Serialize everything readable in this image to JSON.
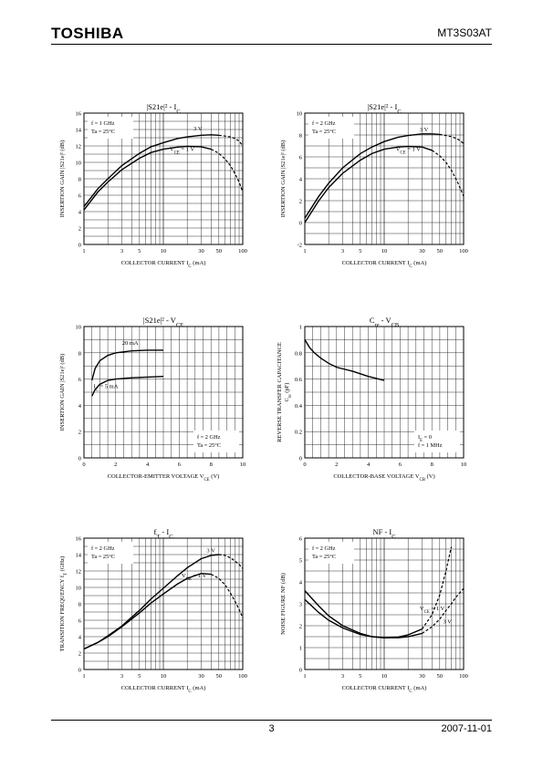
{
  "header": {
    "brand": "TOSHIBA",
    "part_number": "MT3S03AT"
  },
  "footer": {
    "page": "3",
    "date": "2007-11-01"
  },
  "chart_data": [
    {
      "type": "line",
      "title_main": "|S21e|² - I",
      "title_sub": "C",
      "xlabel_main": "COLLECTOR CURRENT  I",
      "xlabel_sub": "C",
      "xlabel_unit": "(mA)",
      "ylabel_main": "INSERTION GAIN  |S21e|²",
      "ylabel_unit": "(dB)",
      "xscale": "log",
      "xlim": [
        1,
        100
      ],
      "ylim": [
        0,
        16
      ],
      "yticks": [
        0,
        2,
        4,
        6,
        8,
        10,
        12,
        14,
        16
      ],
      "xticks": [
        1,
        3,
        5,
        10,
        30,
        50,
        100
      ],
      "conditions": [
        "f = 1 GHz",
        "Ta = 25°C"
      ],
      "series": [
        {
          "name": "3 V",
          "x": [
            1,
            1.5,
            2,
            3,
            5,
            7,
            10,
            15,
            20,
            30,
            40,
            50
          ],
          "y": [
            4.6,
            6.8,
            8.0,
            9.6,
            11.1,
            11.9,
            12.4,
            12.9,
            13.1,
            13.3,
            13.35,
            13.3
          ],
          "dashed_x": [
            50,
            60,
            70,
            80,
            90,
            100
          ],
          "dashed_y": [
            13.3,
            13.2,
            13.1,
            12.9,
            12.6,
            12.0
          ]
        },
        {
          "name": "VCE = 1 V",
          "x": [
            1,
            1.5,
            2,
            3,
            5,
            7,
            10,
            15,
            20,
            30,
            40
          ],
          "y": [
            4.2,
            6.4,
            7.6,
            9.1,
            10.5,
            11.2,
            11.6,
            11.85,
            11.95,
            11.9,
            11.6
          ],
          "dashed_x": [
            40,
            50,
            60,
            70,
            80,
            90,
            100
          ],
          "dashed_y": [
            11.6,
            11.1,
            10.4,
            9.6,
            8.6,
            7.6,
            6.4
          ]
        }
      ]
    },
    {
      "type": "line",
      "title_main": "|S21e|² - I",
      "title_sub": "C",
      "xlabel_main": "COLLECTOR CURRENT  I",
      "xlabel_sub": "C",
      "xlabel_unit": "(mA)",
      "ylabel_main": "INSERTION GAIN  |S21e|²",
      "ylabel_unit": "(dB)",
      "xscale": "log",
      "xlim": [
        1,
        100
      ],
      "ylim": [
        -2,
        10
      ],
      "yticks": [
        -2,
        0,
        2,
        4,
        6,
        8,
        10
      ],
      "xticks": [
        1,
        3,
        5,
        10,
        30,
        50,
        100
      ],
      "conditions": [
        "f = 2 GHz",
        "Ta = 25°C"
      ],
      "series": [
        {
          "name": "3 V",
          "x": [
            1,
            1.5,
            2,
            3,
            5,
            7,
            10,
            15,
            20,
            30,
            40,
            50
          ],
          "y": [
            0.4,
            2.4,
            3.6,
            5.0,
            6.3,
            6.9,
            7.4,
            7.8,
            7.95,
            8.1,
            8.1,
            8.05
          ],
          "dashed_x": [
            50,
            60,
            70,
            80,
            90,
            100
          ],
          "dashed_y": [
            8.05,
            7.95,
            7.85,
            7.7,
            7.5,
            7.2
          ]
        },
        {
          "name": "VCE = 1 V",
          "x": [
            1,
            1.5,
            2,
            3,
            5,
            7,
            10,
            15,
            20,
            30,
            40
          ],
          "y": [
            0.0,
            2.0,
            3.2,
            4.5,
            5.7,
            6.3,
            6.7,
            6.9,
            6.95,
            6.9,
            6.6
          ],
          "dashed_x": [
            40,
            50,
            60,
            70,
            80,
            90,
            100
          ],
          "dashed_y": [
            6.6,
            6.1,
            5.5,
            4.8,
            4.0,
            3.2,
            2.4
          ]
        }
      ]
    },
    {
      "type": "line",
      "title_main": "|S21e|² - V",
      "title_sub": "CE",
      "xlabel_main": "COLLECTOR-EMITTER VOLTAGE  V",
      "xlabel_sub": "CE",
      "xlabel_unit": "(V)",
      "ylabel_main": "INSERTION GAIN  |S21e|²",
      "ylabel_unit": "(dB)",
      "xscale": "linear",
      "xlim": [
        0,
        10
      ],
      "ylim": [
        0,
        10
      ],
      "yticks": [
        0,
        2,
        4,
        6,
        8,
        10
      ],
      "xticks": [
        0,
        2,
        4,
        6,
        8,
        10
      ],
      "conditions": [
        "f = 2 GHz",
        "Ta = 25°C"
      ],
      "series": [
        {
          "name": "20 mA",
          "x": [
            0.5,
            0.7,
            1,
            1.5,
            2,
            3,
            4,
            5
          ],
          "y": [
            5.9,
            6.8,
            7.4,
            7.8,
            8.0,
            8.15,
            8.2,
            8.2
          ]
        },
        {
          "name": "IC = 5 mA",
          "x": [
            0.5,
            0.7,
            1,
            1.5,
            2,
            3,
            4,
            5
          ],
          "y": [
            4.7,
            5.2,
            5.6,
            5.9,
            6.0,
            6.1,
            6.15,
            6.2
          ]
        }
      ]
    },
    {
      "type": "line",
      "title_main": "C",
      "title_sub": "re",
      "title_rest": " - V",
      "title_sub2": "CB",
      "xlabel_main": "COLLECTOR-BASE VOLTAGE  V",
      "xlabel_sub": "CB",
      "xlabel_unit": "(V)",
      "ylabel_main": "REVERSE TRANSFER CAPACITANCE",
      "ylabel_line2": "C",
      "ylabel_line2_sub": "re",
      "ylabel_unit": "(pF)",
      "xscale": "linear",
      "xlim": [
        0,
        10
      ],
      "ylim": [
        0,
        1
      ],
      "yticks": [
        0,
        0.2,
        0.4,
        0.6,
        0.8,
        1.0
      ],
      "xticks": [
        0,
        2,
        4,
        6,
        8,
        10
      ],
      "conditions": [
        "IE = 0",
        "f = 1 MHz"
      ],
      "series": [
        {
          "name": "Cre",
          "x": [
            0,
            0.3,
            0.6,
            1,
            1.5,
            2,
            3,
            4,
            5
          ],
          "y": [
            0.9,
            0.84,
            0.8,
            0.76,
            0.72,
            0.69,
            0.66,
            0.62,
            0.59
          ]
        }
      ]
    },
    {
      "type": "line",
      "title_main": "f",
      "title_sub": "T",
      "title_rest": " - I",
      "title_sub2": "C",
      "xlabel_main": "COLLECTOR CURRENT  I",
      "xlabel_sub": "C",
      "xlabel_unit": "(mA)",
      "ylabel_main": "TRANSITION FREQUENCY  f",
      "ylabel_sub": "T",
      "ylabel_unit": "(GHz)",
      "xscale": "log",
      "xlim": [
        1,
        100
      ],
      "ylim": [
        0,
        16
      ],
      "yticks": [
        0,
        2,
        4,
        6,
        8,
        10,
        12,
        14,
        16
      ],
      "xticks": [
        1,
        3,
        5,
        10,
        30,
        50,
        100
      ],
      "conditions": [
        "f = 2 GHz",
        "Ta = 25°C"
      ],
      "series": [
        {
          "name": "3 V",
          "x": [
            1,
            1.5,
            2,
            3,
            5,
            7,
            10,
            15,
            20,
            30,
            40,
            50
          ],
          "y": [
            2.5,
            3.3,
            4.1,
            5.3,
            7.2,
            8.6,
            9.9,
            11.4,
            12.4,
            13.5,
            13.9,
            14.0
          ],
          "dashed_x": [
            50,
            60,
            70,
            80,
            90,
            100
          ],
          "dashed_y": [
            14.0,
            13.9,
            13.6,
            13.2,
            12.8,
            12.3
          ]
        },
        {
          "name": "VCE = 1 V",
          "x": [
            1,
            1.5,
            2,
            3,
            5,
            7,
            10,
            15,
            20,
            30,
            40
          ],
          "y": [
            2.5,
            3.3,
            4.0,
            5.2,
            6.9,
            8.1,
            9.2,
            10.4,
            11.1,
            11.7,
            11.6
          ],
          "dashed_x": [
            40,
            50,
            60,
            70,
            80,
            90,
            100
          ],
          "dashed_y": [
            11.6,
            11.1,
            10.3,
            9.3,
            8.3,
            7.3,
            6.3
          ]
        }
      ]
    },
    {
      "type": "line",
      "title_main": "NF - I",
      "title_sub": "C",
      "xlabel_main": "COLLECTOR CURRENT  I",
      "xlabel_sub": "C",
      "xlabel_unit": "(mA)",
      "ylabel_main": "NOISE FIGURE  NF",
      "ylabel_unit": "(dB)",
      "xscale": "log",
      "xlim": [
        1,
        100
      ],
      "ylim": [
        0,
        6
      ],
      "yticks": [
        0,
        1,
        2,
        3,
        4,
        5,
        6
      ],
      "xticks": [
        1,
        3,
        5,
        10,
        30,
        50,
        100
      ],
      "conditions": [
        "f = 2 GHz",
        "Ta = 25°C"
      ],
      "series": [
        {
          "name": "VCE = 1 V",
          "x": [
            1,
            1.5,
            2,
            3,
            5,
            7,
            10,
            15,
            20,
            30
          ],
          "y": [
            3.6,
            2.9,
            2.45,
            2.0,
            1.65,
            1.5,
            1.45,
            1.48,
            1.58,
            1.85
          ],
          "dashed_x": [
            30,
            40,
            50,
            60,
            70
          ],
          "dashed_y": [
            1.85,
            2.5,
            3.4,
            4.5,
            5.6
          ]
        },
        {
          "name": "3 V",
          "x": [
            1,
            1.5,
            2,
            3,
            5,
            7,
            10,
            15,
            20,
            30
          ],
          "y": [
            3.2,
            2.6,
            2.25,
            1.9,
            1.6,
            1.5,
            1.45,
            1.45,
            1.5,
            1.65
          ],
          "dashed_x": [
            30,
            40,
            50,
            60,
            70,
            80,
            100
          ],
          "dashed_y": [
            1.65,
            1.95,
            2.3,
            2.7,
            3.0,
            3.3,
            3.7
          ]
        }
      ]
    }
  ]
}
